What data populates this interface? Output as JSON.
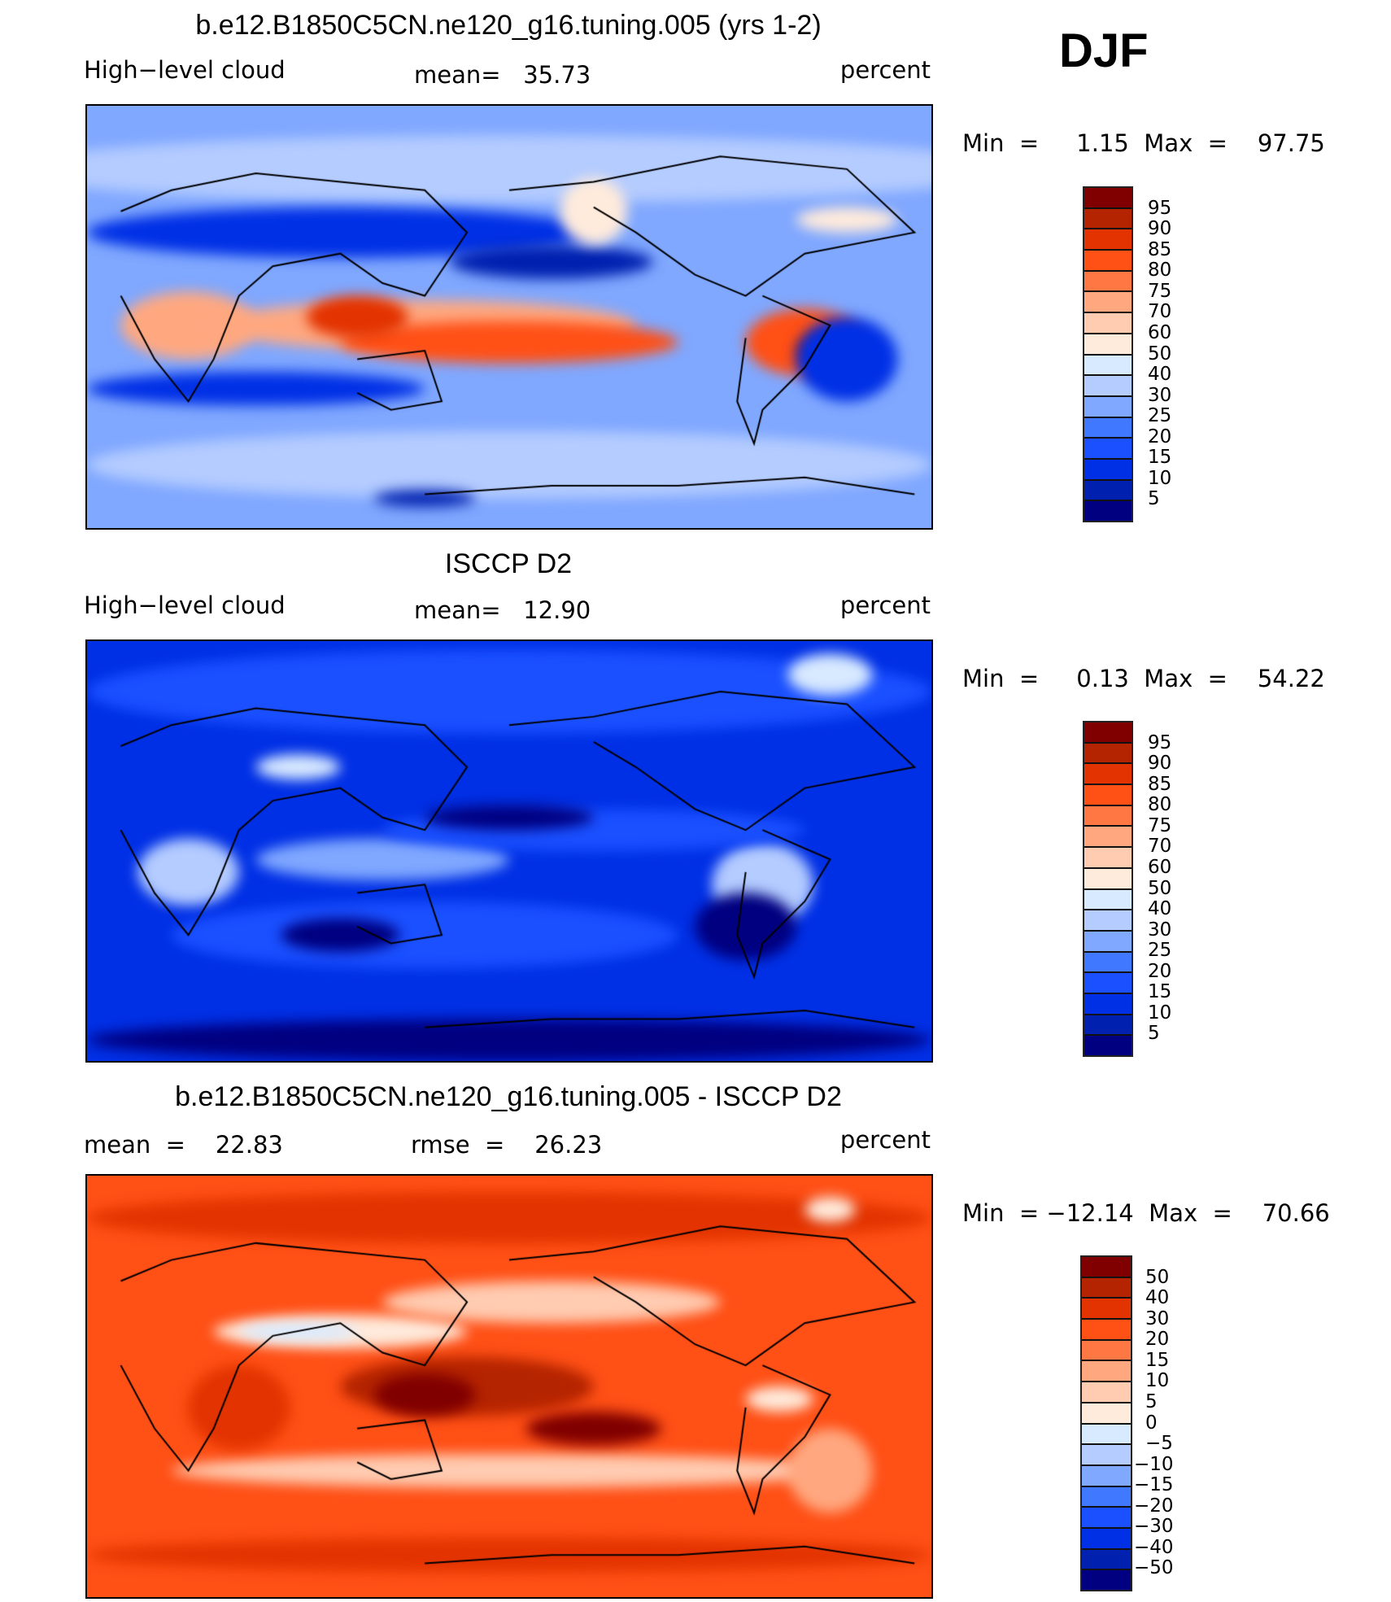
{
  "season": "DJF",
  "palette": [
    "#800000",
    "#b52400",
    "#e33300",
    "#ff5016",
    "#ff7844",
    "#ffa880",
    "#ffccb2",
    "#ffebdc",
    "#d8eaff",
    "#b4ccff",
    "#80a8ff",
    "#4078ff",
    "#1a50ff",
    "#0030e6",
    "#0020b0",
    "#000080"
  ],
  "chart_data": [
    {
      "type": "heatmap",
      "title": "b.e12.B1850C5CN.ne120_g16.tuning.005 (yrs 1-2)",
      "variable": "High−level cloud",
      "stat": "mean=   35.73",
      "units": "percent",
      "minmax": "Min  =     1.15  Max  =    97.75",
      "levels": [
        "95",
        "90",
        "85",
        "80",
        "75",
        "70",
        "60",
        "50",
        "40",
        "30",
        "25",
        "20",
        "15",
        "10",
        "5"
      ]
    },
    {
      "type": "heatmap",
      "title": "ISCCP D2",
      "variable": "High−level cloud",
      "stat": "mean=   12.90",
      "units": "percent",
      "minmax": "Min  =     0.13  Max  =    54.22",
      "levels": [
        "95",
        "90",
        "85",
        "80",
        "75",
        "70",
        "60",
        "50",
        "40",
        "30",
        "25",
        "20",
        "15",
        "10",
        "5"
      ]
    },
    {
      "type": "heatmap",
      "title": "b.e12.B1850C5CN.ne120_g16.tuning.005 - ISCCP D2",
      "stat": "mean  =    22.83",
      "stat2": "rmse  =    26.23",
      "units": "percent",
      "minmax": "Min  = −12.14  Max  =    70.66",
      "levels": [
        "50",
        "40",
        "30",
        "20",
        "15",
        "10",
        "5",
        "0",
        "−5",
        "−10",
        "−15",
        "−20",
        "−30",
        "−40",
        "−50"
      ]
    }
  ]
}
